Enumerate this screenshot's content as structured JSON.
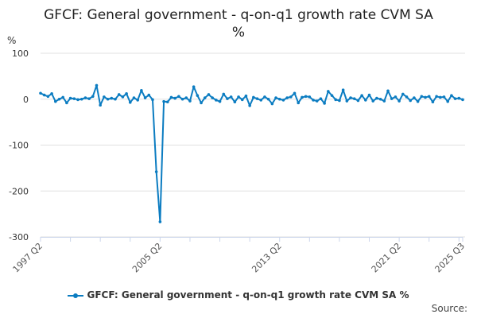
{
  "chart_data": {
    "type": "line",
    "title": "GFCF: General government - q-on-q1 growth rate CVM SA",
    "title_line2": "%",
    "ylabel": "%",
    "xlabel": "",
    "ylim": [
      -300,
      100
    ],
    "yticks": [
      100,
      0,
      -100,
      -200,
      -300
    ],
    "x_start": "1997 Q2",
    "x_end": "2025 Q3",
    "xtick_labels": [
      "1997 Q2",
      "2005 Q2",
      "2013 Q2",
      "2021 Q2",
      "2025 Q3"
    ],
    "grid": true,
    "legend_position": "bottom",
    "color": "#0b7cc1",
    "series": [
      {
        "name": "GFCF: General government - q-on-q1 growth rate CVM SA %",
        "values": [
          13,
          9,
          6,
          12,
          -5,
          0,
          4,
          -8,
          2,
          1,
          -1,
          0,
          3,
          1,
          6,
          30,
          -13,
          5,
          0,
          2,
          0,
          10,
          5,
          12,
          -7,
          3,
          -2,
          19,
          3,
          9,
          -1,
          -158,
          -267,
          -5,
          -6,
          4,
          2,
          6,
          0,
          3,
          -4,
          27,
          8,
          -8,
          3,
          10,
          3,
          -2,
          -5,
          11,
          1,
          5,
          -6,
          5,
          -1,
          7,
          -14,
          4,
          1,
          -2,
          5,
          0,
          -10,
          3,
          0,
          -2,
          3,
          5,
          13,
          -8,
          4,
          6,
          5,
          -2,
          -4,
          1,
          -9,
          17,
          8,
          -1,
          -3,
          20,
          -4,
          3,
          1,
          -3,
          8,
          -2,
          9,
          -4,
          2,
          0,
          -4,
          18,
          1,
          5,
          -4,
          11,
          5,
          -3,
          3,
          -5,
          6,
          4,
          6,
          -6,
          6,
          4,
          5,
          -5,
          8,
          1,
          2,
          -1
        ]
      }
    ]
  },
  "source_label": "Source:"
}
